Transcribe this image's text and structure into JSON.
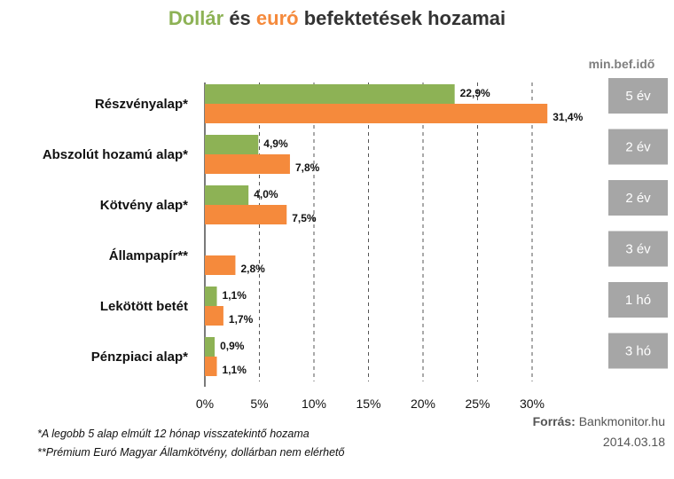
{
  "title": {
    "part_usd": "Dollár",
    "part_and": " és ",
    "part_eur": "euró",
    "part_rest": " befektetések hozamai"
  },
  "duration_header": "min.bef.idő",
  "footnotes": {
    "line1": "*A legobb 5 alap elmúlt 12 hónap visszatekintő hozama",
    "line2": "**Prémium  Euró Magyar Államkötvény, dollárban nem elérhető"
  },
  "source": {
    "label": "Forrás:",
    "value": " Bankmonitor.hu"
  },
  "date": "2014.03.18",
  "colors": {
    "usd": "#8db255",
    "eur": "#f58a3c",
    "duration_box": "#a6a6a6",
    "grid": "#555555"
  },
  "chart_data": {
    "type": "bar",
    "orientation": "horizontal",
    "categories": [
      "Részvényalap*",
      "Abszolút hozamú alap*",
      "Kötvény alap*",
      "Állampapír**",
      "Lekötött betét",
      "Pénzpiaci alap*"
    ],
    "series": [
      {
        "name": "",
        "color": "#8db255",
        "values": [
          22.9,
          4.9,
          4.0,
          null,
          1.1,
          0.9
        ],
        "labels": [
          "22,9%",
          "4,9%",
          "4,0%",
          "",
          "1,1%",
          "0,9%"
        ]
      },
      {
        "name": "",
        "color": "#f58a3c",
        "values": [
          31.4,
          7.8,
          7.5,
          2.8,
          1.7,
          1.1
        ],
        "labels": [
          "31,4%",
          "7,8%",
          "7,5%",
          "2,8%",
          "1,7%",
          "1,1%"
        ]
      }
    ],
    "min_durations": [
      "5 év",
      "2 év",
      "2 év",
      "3 év",
      "1 hó",
      "3 hó"
    ],
    "xticks": [
      0,
      5,
      10,
      15,
      20,
      25,
      30
    ],
    "xtick_labels": [
      "0%",
      "5%",
      "10%",
      "15%",
      "20%",
      "25%",
      "30%"
    ],
    "xlim": [
      0,
      32
    ],
    "grid": "vertical dashed",
    "xlabel": "",
    "ylabel": ""
  }
}
